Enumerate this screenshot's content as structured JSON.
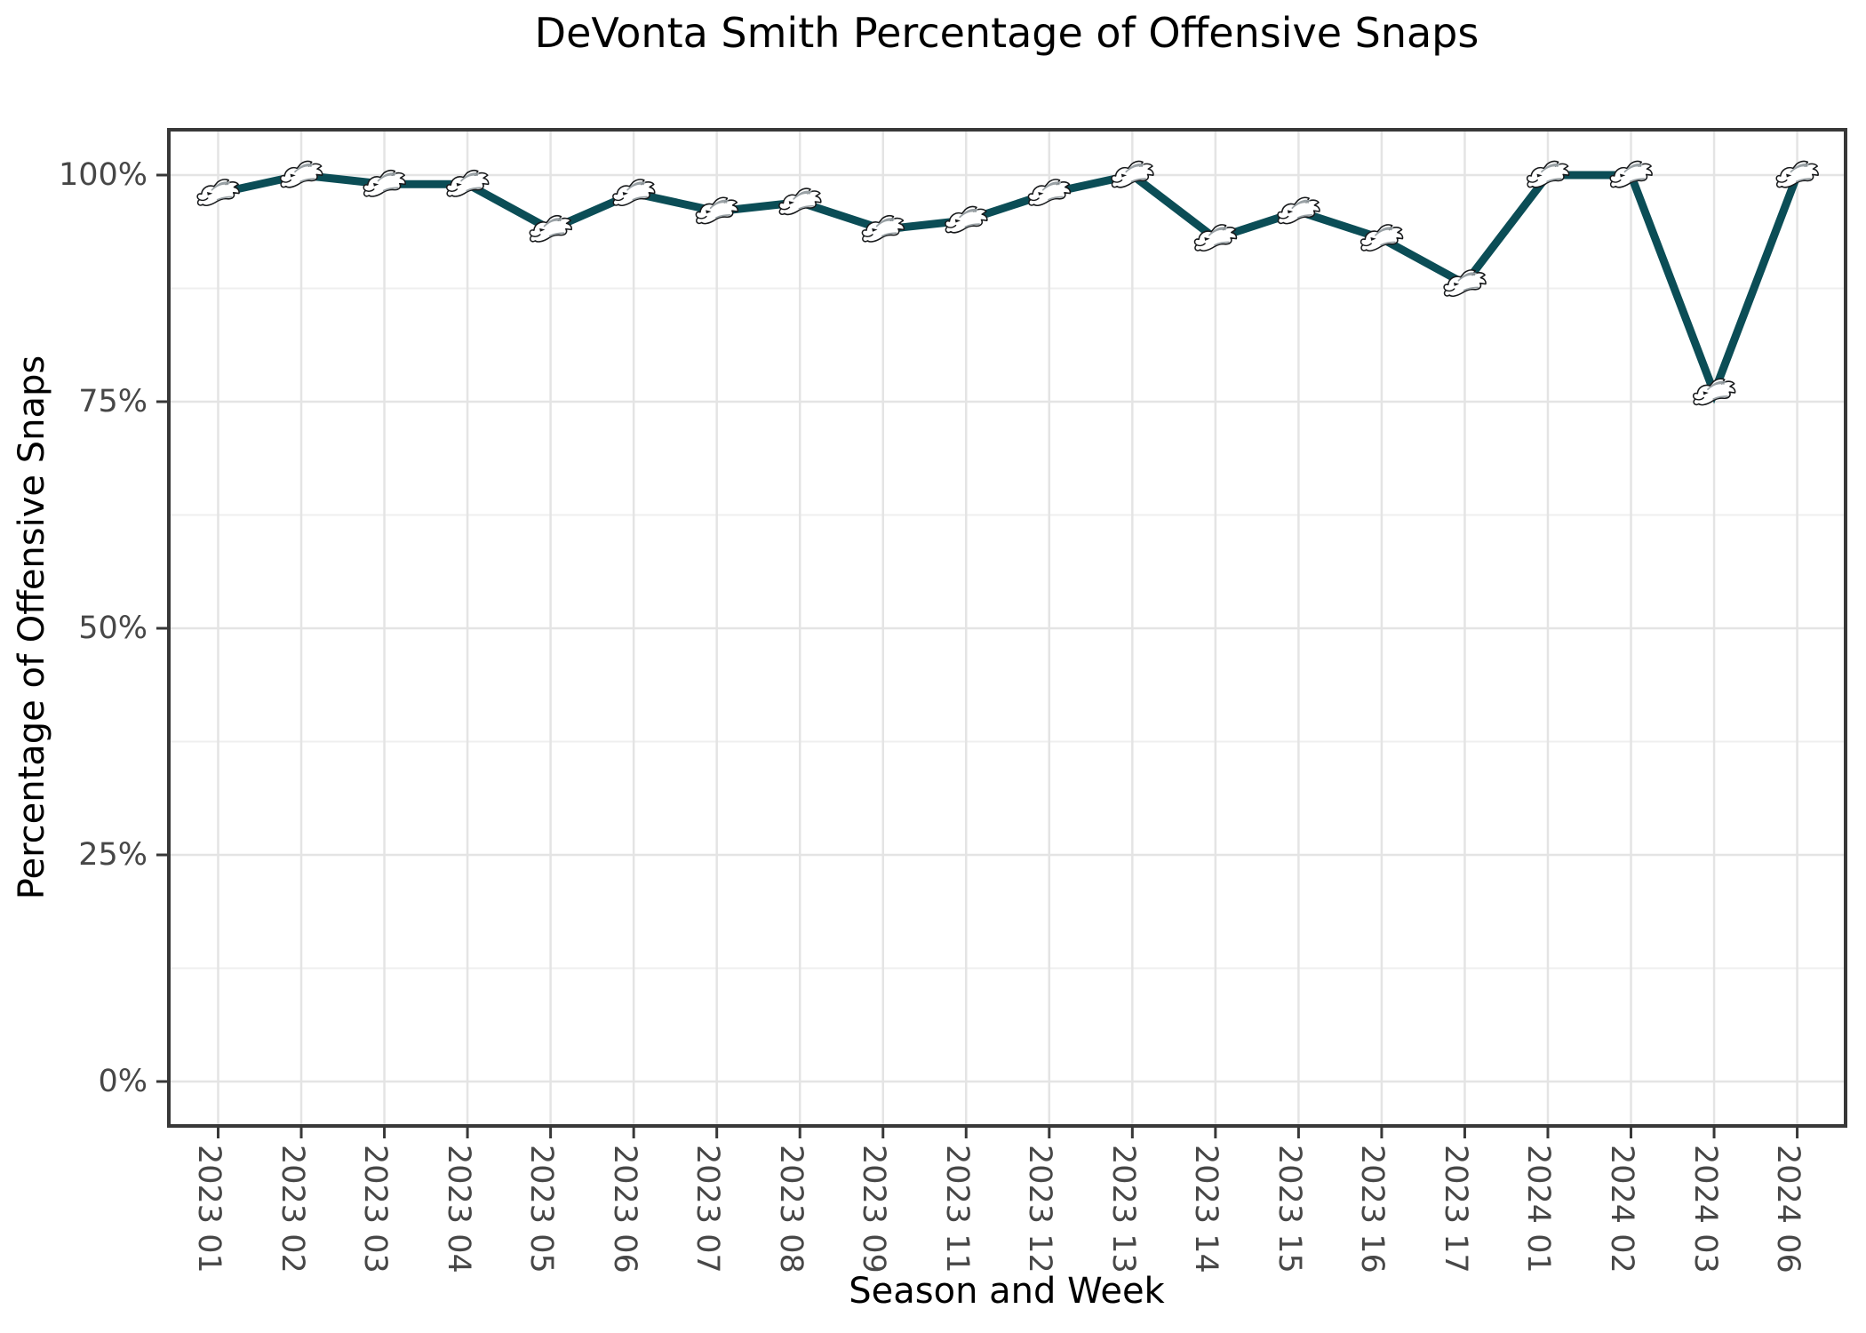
{
  "title": "DeVonta Smith Percentage of Offensive Snaps",
  "chart_data": {
    "type": "line",
    "title": "DeVonta Smith Percentage of Offensive Snaps",
    "xlabel": "Season and Week",
    "ylabel": "Percentage of Offensive Snaps",
    "categories": [
      "2023 01",
      "2023 02",
      "2023 03",
      "2023 04",
      "2023 05",
      "2023 06",
      "2023 07",
      "2023 08",
      "2023 09",
      "2023 11",
      "2023 12",
      "2023 13",
      "2023 14",
      "2023 15",
      "2023 16",
      "2023 17",
      "2024 01",
      "2024 02",
      "2024 03",
      "2024 06"
    ],
    "values": [
      98,
      100,
      99,
      99,
      94,
      98,
      96,
      97,
      94,
      95,
      98,
      100,
      93,
      96,
      93,
      88,
      100,
      100,
      76,
      100
    ],
    "y_tick_values": [
      0,
      25,
      50,
      75,
      100
    ],
    "y_tick_labels": [
      "0%",
      "25%",
      "50%",
      "75%",
      "100%"
    ],
    "ylim": [
      0,
      100
    ],
    "series_name": "DeVonta Smith offensive snap percentage",
    "marker": "philadelphia-eagles-logo",
    "legend": "none",
    "grid": {
      "horizontal_major": true,
      "horizontal_minor": true,
      "vertical_major": true,
      "vertical_minor": false
    },
    "colors": {
      "line": "#0B4D56",
      "marker_fill": "#FFFFFF",
      "marker_outline": "#17191B",
      "marker_shading": "#99A1A5",
      "grid_major": "#E4E4E4",
      "grid_minor": "#EFEFEF",
      "panel_border": "#383838",
      "tick_mark": "#383838",
      "axis_text": "#474747",
      "title_text": "#000000",
      "background": "#FFFFFF"
    }
  }
}
